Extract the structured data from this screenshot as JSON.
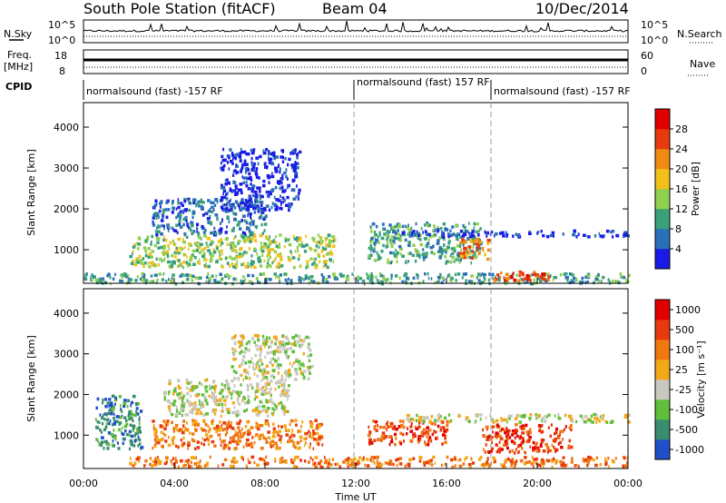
{
  "header": {
    "station": "South Pole Station (fitACF)",
    "beam": "Beam 04",
    "date": "10/Dec/2014"
  },
  "strip_panels": {
    "nsky": {
      "label": "N.Sky",
      "top_tick": "10^5",
      "bottom_tick": "10^0"
    },
    "nsearch": {
      "label": "N.Search",
      "top_tick": "10^5",
      "bottom_tick": "10^0"
    },
    "freq": {
      "label_line1": "Freq.",
      "label_line2": "[MHz]",
      "top_tick": "18",
      "bottom_tick": "8"
    },
    "nave": {
      "label": "Nave",
      "top_tick": "60",
      "bottom_tick": "0"
    },
    "cpid": {
      "label": "CPID",
      "segments": [
        {
          "text": "normalsound (fast) -157 RF",
          "start_hour": 0
        },
        {
          "text": "normalsound (fast) 157 RF",
          "start_hour": 12
        },
        {
          "text": "normalsound (fast) -157 RF",
          "start_hour": 18
        }
      ]
    }
  },
  "chart_data": [
    {
      "type": "heatmap",
      "panel": "power",
      "ylabel": "Slant Range [km]",
      "yticks": [
        "1000",
        "2000",
        "3000",
        "4000"
      ],
      "ylim": [
        180,
        4600
      ],
      "xlim": [
        0,
        24
      ],
      "colorbar_label": "Power [dB]",
      "colorbar_ticks": [
        "4",
        "8",
        "12",
        "16",
        "20",
        "24",
        "28"
      ],
      "colorbar_colors": [
        "#1a1ae6",
        "#2b6fb8",
        "#3aa07a",
        "#8fd04f",
        "#f2c019",
        "#f08a10",
        "#e83a0c",
        "#e00000"
      ],
      "data_regions": [
        {
          "t0": 0.0,
          "t1": 24.0,
          "r0": 200,
          "r1": 450,
          "level": 2
        },
        {
          "t0": 2.0,
          "t1": 11.0,
          "r0": 600,
          "r1": 1400,
          "level": 3
        },
        {
          "t0": 3.0,
          "t1": 8.0,
          "r0": 1400,
          "r1": 2300,
          "level": 1
        },
        {
          "t0": 6.0,
          "t1": 9.5,
          "r0": 2000,
          "r1": 3500,
          "level": 0
        },
        {
          "t0": 12.5,
          "t1": 17.5,
          "r0": 700,
          "r1": 1700,
          "level": 2
        },
        {
          "t0": 14.0,
          "t1": 24.0,
          "r0": 1350,
          "r1": 1500,
          "level": 0
        },
        {
          "t0": 18.0,
          "t1": 20.5,
          "r0": 280,
          "r1": 500,
          "level": 6
        },
        {
          "t0": 16.5,
          "t1": 17.8,
          "r0": 800,
          "r1": 1300,
          "level": 5
        }
      ]
    },
    {
      "type": "heatmap",
      "panel": "velocity",
      "ylabel": "Slant Range [km]",
      "xlabel": "Time UT",
      "xticks": [
        "00:00",
        "04:00",
        "08:00",
        "12:00",
        "16:00",
        "20:00",
        "00:00"
      ],
      "yticks": [
        "1000",
        "2000",
        "3000",
        "4000"
      ],
      "ylim": [
        180,
        4600
      ],
      "xlim": [
        0,
        24
      ],
      "colorbar_label": "Velocity [m s⁻¹]",
      "colorbar_ticks": [
        "1000",
        "500",
        "100",
        "25",
        "-25",
        "-100",
        "-500",
        "-1000"
      ],
      "colorbar_colors": [
        "#2050c8",
        "#3a8c70",
        "#5fbf3a",
        "#c8c8c0",
        "#f2a818",
        "#f07810",
        "#e83a0c",
        "#e00000"
      ],
      "data_regions": [
        {
          "t0": 3.0,
          "t1": 10.5,
          "r0": 700,
          "r1": 1400,
          "level": 5
        },
        {
          "t0": 3.5,
          "t1": 9.0,
          "r0": 1500,
          "r1": 2400,
          "level": 3
        },
        {
          "t0": 6.5,
          "t1": 10.0,
          "r0": 2400,
          "r1": 3500,
          "level": 3
        },
        {
          "t0": 2.0,
          "t1": 24.0,
          "r0": 250,
          "r1": 500,
          "level": 5
        },
        {
          "t0": 12.5,
          "t1": 16.0,
          "r0": 800,
          "r1": 1400,
          "level": 6
        },
        {
          "t0": 14.0,
          "t1": 24.0,
          "r0": 1350,
          "r1": 1550,
          "level": 3
        },
        {
          "t0": 17.5,
          "t1": 21.5,
          "r0": 600,
          "r1": 1300,
          "level": 6
        },
        {
          "t0": 0.5,
          "t1": 2.5,
          "r0": 700,
          "r1": 2000,
          "level": 1
        }
      ]
    }
  ]
}
